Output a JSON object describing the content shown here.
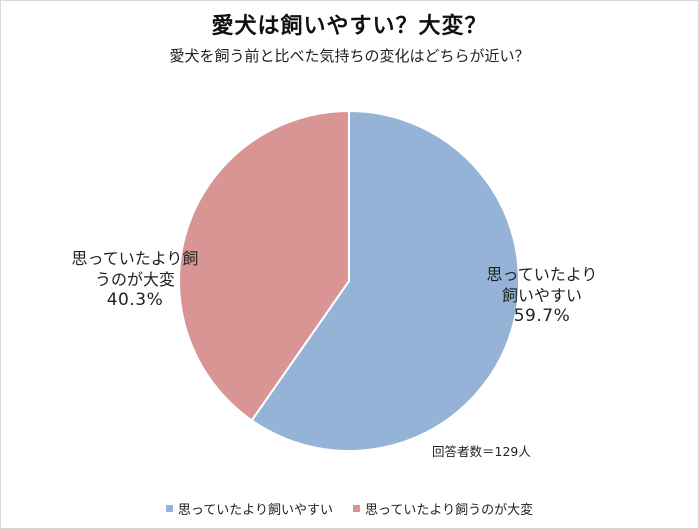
{
  "chart_data": {
    "type": "pie",
    "title": "愛犬は飼いやすい？大変？",
    "subtitle": "愛犬を飼う前と比べた気持ちの変化はどちらが近い？",
    "slices": [
      {
        "label": "思っていたより飼いやすい",
        "label_lines": [
          "思っていたより",
          "飼いやすい"
        ],
        "value": 59.7,
        "value_text": "59.7%",
        "color": "#95b3d7"
      },
      {
        "label": "思っていたより飼うのが大変",
        "label_lines": [
          "思っていたより飼",
          "うのが大変"
        ],
        "value": 40.3,
        "value_text": "40.3%",
        "color": "#d99594"
      }
    ],
    "respondents_note": "回答者数＝129人",
    "legend": [
      "思っていたより飼いやすい",
      "思っていたより飼うのが大変"
    ],
    "legend_position": "bottom"
  }
}
